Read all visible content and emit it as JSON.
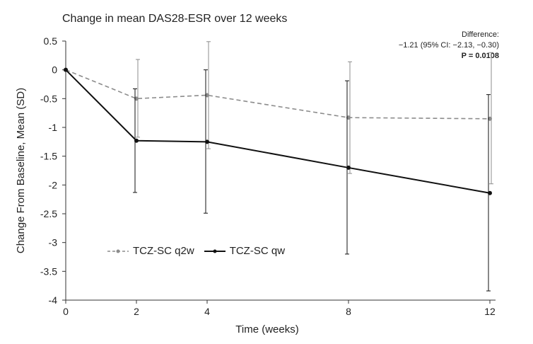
{
  "chart_data": {
    "type": "line",
    "title": "Change in mean DAS28-ESR over 12 weeks",
    "xlabel": "Time (weeks)",
    "ylabel": "Change From Baseline, Mean (SD)",
    "xlim": [
      0,
      12
    ],
    "ylim": [
      -4,
      0.5
    ],
    "x": [
      0,
      2,
      4,
      8,
      12
    ],
    "xticks": [
      "0",
      "2",
      "4",
      "8",
      "12"
    ],
    "yticks": [
      "0.5",
      "0",
      "-0.5",
      "-1",
      "-1.5",
      "-2",
      "-2.5",
      "-3",
      "-3.5",
      "-4"
    ],
    "yticks_values": [
      0.5,
      0,
      -0.5,
      -1,
      -1.5,
      -2,
      -2.5,
      -3,
      -3.5,
      -4
    ],
    "grid": false,
    "legend_position": "bottom-left",
    "series": [
      {
        "name": "TCZ-SC q2w",
        "style": "dashed",
        "color": "#8c8c8c",
        "values": [
          0,
          -0.5,
          -0.44,
          -0.83,
          -0.85
        ],
        "err_low": [
          0,
          -1.17,
          -1.37,
          -1.8,
          -1.98
        ],
        "err_high": [
          0,
          0.18,
          0.49,
          0.14,
          0.3
        ]
      },
      {
        "name": "TCZ-SC qw",
        "style": "solid",
        "color": "#111111",
        "values": [
          0,
          -1.23,
          -1.25,
          -1.7,
          -2.14
        ],
        "err_low": [
          0,
          -2.13,
          -2.49,
          -3.2,
          -3.84
        ],
        "err_high": [
          0,
          -0.33,
          0.0,
          -0.19,
          -0.43
        ]
      }
    ],
    "annotation": {
      "line1": "Difference:",
      "line2": "−1.21 (95% CI: −2.13, −0.30)",
      "line3": "P = 0.0108"
    }
  }
}
